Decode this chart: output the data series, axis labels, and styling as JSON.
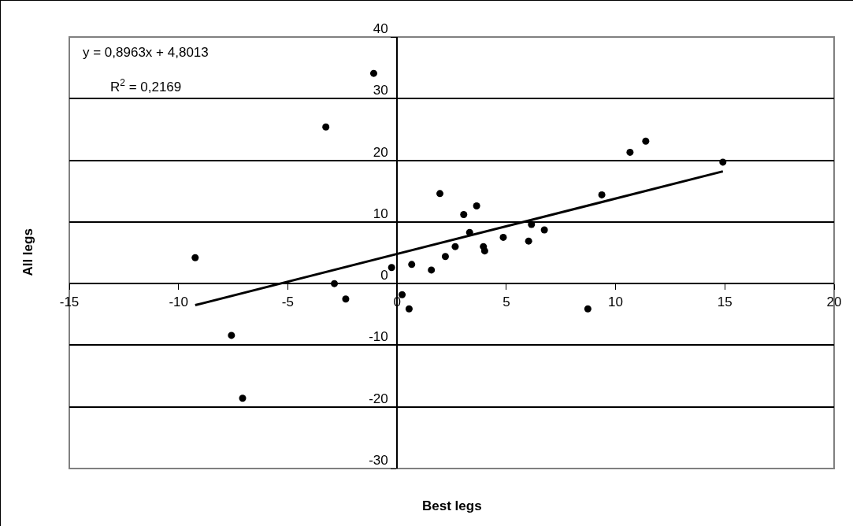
{
  "chart_data": {
    "type": "scatter",
    "xlabel": "Best legs",
    "ylabel": "All legs",
    "annotations": [
      "y = 0,8963x + 4,8013",
      "R$^{2}$ = 0,2169"
    ],
    "xlim": [
      -15,
      20
    ],
    "xticks": [
      -15,
      -10,
      -5,
      0,
      5,
      10,
      15,
      20
    ],
    "ylim": [
      -30,
      40
    ],
    "yticks": [
      -30,
      -20,
      -10,
      0,
      10,
      20,
      30,
      40
    ],
    "grid": "y",
    "series": [
      {
        "marker": "circle",
        "color": "#000000",
        "x": [
          -1.07,
          -3.26,
          1.96,
          -9.24,
          -0.25,
          0.67,
          1.57,
          2.21,
          2.66,
          3.05,
          3.64,
          3.32,
          3.95,
          4.01,
          4.86,
          6.02,
          6.15,
          6.74,
          9.37,
          10.66,
          11.38,
          14.91,
          -2.87,
          -2.35,
          0.23,
          0.55,
          -7.58,
          -7.07,
          8.73
        ],
        "values": [
          34.1,
          25.4,
          14.6,
          4.2,
          2.6,
          3.1,
          2.2,
          4.4,
          6.0,
          11.2,
          12.6,
          8.3,
          6.0,
          5.3,
          7.5,
          6.9,
          9.6,
          8.7,
          14.4,
          21.3,
          23.1,
          19.7,
          0,
          -2.5,
          -1.8,
          -4.1,
          -8.4,
          -18.6,
          -4.1
        ]
      },
      {
        "type": "line",
        "color": "#000000",
        "x": [
          -9.24,
          14.91
        ],
        "values": [
          -3.5,
          18.2
        ],
        "marker": "none",
        "line_style": "solid"
      }
    ]
  }
}
